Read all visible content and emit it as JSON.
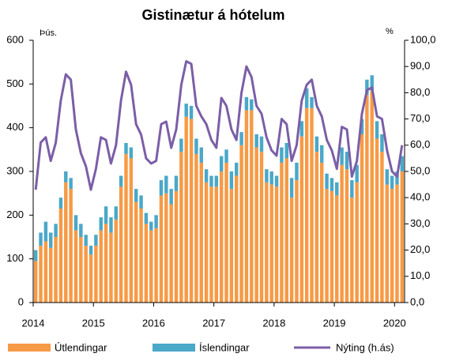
{
  "chart_data": {
    "type": "bar",
    "title": "Gistinætur á hótelum",
    "y_label": "Þús.",
    "y2_label": "%",
    "categories": [
      "2014",
      null,
      null,
      null,
      null,
      null,
      null,
      null,
      null,
      null,
      null,
      null,
      "2015",
      null,
      null,
      null,
      null,
      null,
      null,
      null,
      null,
      null,
      null,
      null,
      "2016",
      null,
      null,
      null,
      null,
      null,
      null,
      null,
      null,
      null,
      null,
      null,
      "2017",
      null,
      null,
      null,
      null,
      null,
      null,
      null,
      null,
      null,
      null,
      null,
      "2018",
      null,
      null,
      null,
      null,
      null,
      null,
      null,
      null,
      null,
      null,
      null,
      "2019",
      null,
      null,
      null,
      null,
      null,
      null,
      null,
      null,
      null,
      null,
      null,
      "2020",
      null
    ],
    "series": [
      {
        "name": "Útlendingar",
        "color": "#f79a45",
        "values": [
          95,
          130,
          140,
          125,
          150,
          215,
          275,
          260,
          165,
          150,
          130,
          110,
          130,
          165,
          180,
          160,
          190,
          265,
          340,
          330,
          230,
          215,
          180,
          165,
          170,
          245,
          250,
          225,
          255,
          345,
          425,
          420,
          340,
          320,
          275,
          265,
          265,
          300,
          320,
          260,
          290,
          360,
          440,
          440,
          355,
          345,
          275,
          270,
          265,
          320,
          330,
          240,
          280,
          380,
          445,
          445,
          345,
          320,
          260,
          255,
          245,
          315,
          305,
          240,
          275,
          385,
          475,
          485,
          375,
          345,
          270,
          260,
          270,
          300
        ]
      },
      {
        "name": "Íslendingar",
        "color": "#4aa8c8",
        "values": [
          25,
          30,
          45,
          35,
          30,
          25,
          25,
          25,
          35,
          30,
          25,
          20,
          25,
          30,
          40,
          35,
          30,
          25,
          25,
          25,
          30,
          30,
          25,
          20,
          30,
          35,
          40,
          35,
          35,
          30,
          30,
          30,
          35,
          35,
          30,
          25,
          25,
          35,
          30,
          40,
          30,
          30,
          30,
          25,
          30,
          35,
          30,
          30,
          25,
          35,
          35,
          45,
          40,
          35,
          45,
          25,
          35,
          40,
          35,
          30,
          30,
          40,
          40,
          40,
          40,
          35,
          35,
          35,
          40,
          40,
          35,
          30,
          30,
          35
        ]
      },
      {
        "name": "Nýting  (h.ás)",
        "color": "#7b5ea7",
        "axis": "y2",
        "type": "line",
        "values": [
          43,
          61,
          63,
          54,
          61,
          77,
          87,
          85,
          66,
          57,
          52,
          43,
          51,
          63,
          62,
          53,
          60,
          77,
          88,
          83,
          68,
          64,
          55,
          53,
          54,
          68,
          69,
          59,
          66,
          83,
          92,
          91,
          75,
          71,
          68,
          62,
          59,
          78,
          75,
          66,
          62,
          80,
          90,
          86,
          75,
          72,
          63,
          58,
          56,
          70,
          68,
          54,
          60,
          77,
          83,
          85,
          75,
          71,
          62,
          58,
          51,
          67,
          66,
          48,
          54,
          72,
          81,
          82,
          71,
          70,
          58,
          50,
          48,
          60
        ]
      }
    ],
    "stacked": true,
    "ylim": [
      0,
      600
    ],
    "yticks": [
      0,
      100,
      200,
      300,
      400,
      500,
      600
    ],
    "y2lim": [
      0,
      100
    ],
    "y2ticks": [
      {
        "value": 0,
        "label": "0,0"
      },
      {
        "value": 10,
        "label": "10,0"
      },
      {
        "value": 20,
        "label": "20,0"
      },
      {
        "value": 30,
        "label": "30,0"
      },
      {
        "value": 40,
        "label": "40,0"
      },
      {
        "value": 50,
        "label": "50,0"
      },
      {
        "value": 60,
        "label": "60,0"
      },
      {
        "value": 70,
        "label": "70,0"
      },
      {
        "value": 80,
        "label": "80,0"
      },
      {
        "value": 90,
        "label": "90,0"
      },
      {
        "value": 100,
        "label": "100,0"
      }
    ],
    "legend": "bottom"
  }
}
